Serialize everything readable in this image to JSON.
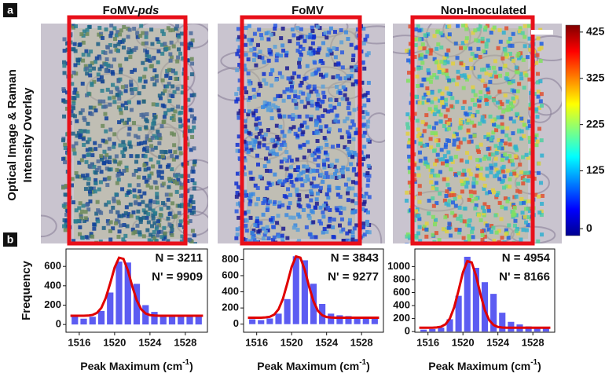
{
  "panel_labels": [
    "a",
    "b"
  ],
  "image_axis_label": [
    "Optical Image & Raman",
    "Intensity Overlay"
  ],
  "image_titles": [
    {
      "text": "FoMV-",
      "italic": "pds"
    },
    {
      "text": "FoMV"
    },
    {
      "text": "Non-Inoculated"
    }
  ],
  "colorbar": {
    "lim": [
      -15,
      440
    ],
    "ticks": [
      0,
      125,
      225,
      325,
      425
    ],
    "colors": [
      "#00008f",
      "#0000ff",
      "#0080ff",
      "#00ffff",
      "#80ff80",
      "#ffff00",
      "#ff8000",
      "#ff0000",
      "#800000"
    ]
  },
  "chart_data": [
    {
      "type": "histogram",
      "ylabel": "Frequency",
      "xlabel": {
        "text": "Peak Maximum (cm",
        "sup": "-1",
        "tail": ")"
      },
      "bins": [
        1515,
        1516,
        1517,
        1518,
        1519,
        1520,
        1521,
        1522,
        1523,
        1524,
        1525,
        1526,
        1527,
        1528,
        1529,
        1530
      ],
      "values": [
        80,
        60,
        80,
        140,
        330,
        650,
        640,
        420,
        200,
        130,
        100,
        90,
        90,
        80,
        80
      ],
      "color": "#5c5cf2",
      "fit": {
        "color": "#e00000",
        "x": [
          1515,
          1515.5,
          1516,
          1516.5,
          1517,
          1517.5,
          1518,
          1518.5,
          1519,
          1519.5,
          1520,
          1520.5,
          1521,
          1521.5,
          1522,
          1522.5,
          1523,
          1523.5,
          1524,
          1524.5,
          1525,
          1525.5,
          1526,
          1526.5,
          1527,
          1527.5,
          1528,
          1528.5,
          1529,
          1529.5,
          1530
        ],
        "values": [
          90,
          90,
          90,
          90,
          92,
          99,
          120,
          172,
          275,
          426,
          588,
          690,
          678,
          558,
          393,
          250,
          158,
          114,
          97,
          92,
          90,
          90,
          90,
          90,
          90,
          90,
          90,
          90,
          90,
          90,
          90
        ]
      },
      "annotations": [
        "N = 3211",
        "N' = 9909"
      ],
      "xlim": [
        1514.5,
        1530.5
      ],
      "xticks": [
        1516,
        1520,
        1524,
        1528
      ],
      "ylim": [
        -80,
        780
      ],
      "yticks": [
        0,
        200,
        400,
        600
      ]
    },
    {
      "type": "histogram",
      "xlabel": {
        "text": "Peak Maximum (cm",
        "sup": "-1",
        "tail": ")"
      },
      "bins": [
        1515,
        1516,
        1517,
        1518,
        1519,
        1520,
        1521,
        1522,
        1523,
        1524,
        1525,
        1526,
        1527,
        1528,
        1529,
        1530
      ],
      "values": [
        60,
        50,
        70,
        130,
        310,
        840,
        790,
        500,
        250,
        130,
        110,
        100,
        90,
        80,
        80
      ],
      "color": "#5c5cf2",
      "fit": {
        "color": "#e00000",
        "x": [
          1515,
          1515.5,
          1516,
          1516.5,
          1517,
          1517.5,
          1518,
          1518.5,
          1519,
          1519.5,
          1520,
          1520.5,
          1521,
          1521.5,
          1522,
          1522.5,
          1523,
          1523.5,
          1524,
          1524.5,
          1525,
          1525.5,
          1526,
          1526.5,
          1527,
          1527.5,
          1528,
          1528.5,
          1529,
          1529.5,
          1530
        ],
        "values": [
          80,
          80,
          80,
          80,
          83,
          91,
          118,
          184,
          313,
          504,
          709,
          838,
          822,
          671,
          463,
          282,
          166,
          110,
          88,
          82,
          80,
          80,
          80,
          80,
          80,
          80,
          80,
          80,
          80,
          80,
          80
        ]
      },
      "annotations": [
        "N = 3843",
        "N' = 9277"
      ],
      "xlim": [
        1514.5,
        1530.5
      ],
      "xticks": [
        1516,
        1520,
        1524,
        1528
      ],
      "ylim": [
        -100,
        930
      ],
      "yticks": [
        0,
        200,
        400,
        600,
        800
      ]
    },
    {
      "type": "histogram",
      "xlabel": {
        "text": "Peak Maximum (cm",
        "sup": "-1",
        "tail": ")"
      },
      "bins": [
        1515,
        1516,
        1517,
        1518,
        1519,
        1520,
        1521,
        1522,
        1523,
        1524,
        1525,
        1526,
        1527,
        1528,
        1529,
        1530
      ],
      "values": [
        30,
        40,
        60,
        190,
        550,
        1150,
        980,
        760,
        580,
        290,
        150,
        110,
        80,
        70,
        60
      ],
      "color": "#5c5cf2",
      "fit": {
        "color": "#e00000",
        "x": [
          1515,
          1515.5,
          1516,
          1516.5,
          1517,
          1517.5,
          1518,
          1518.5,
          1519,
          1519.5,
          1520,
          1520.5,
          1521,
          1521.5,
          1522,
          1522.5,
          1523,
          1523.5,
          1524,
          1524.5,
          1525,
          1525.5,
          1526,
          1526.5,
          1527,
          1527.5,
          1528,
          1528.5,
          1529,
          1529.5,
          1530
        ],
        "values": [
          60,
          60,
          60,
          60,
          64,
          75,
          111,
          200,
          375,
          633,
          910,
          1083,
          1063,
          859,
          577,
          332,
          176,
          101,
          71,
          63,
          60,
          60,
          60,
          60,
          60,
          60,
          60,
          60,
          60,
          60,
          60
        ]
      },
      "annotations": [
        "N = 4954",
        "N' = 8166"
      ],
      "xlim": [
        1514.5,
        1530.5
      ],
      "xticks": [
        1516,
        1520,
        1524,
        1528
      ],
      "ylim": [
        -10,
        1270
      ],
      "yticks": [
        0,
        200,
        400,
        600,
        800,
        1000
      ]
    }
  ]
}
